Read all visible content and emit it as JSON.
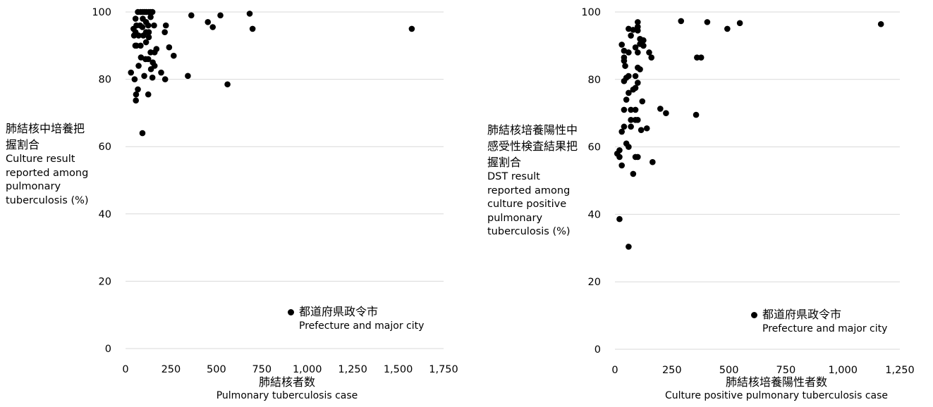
{
  "chart_data": [
    {
      "type": "scatter",
      "ylabel_jp": "肺結核中培養把握割合",
      "ylabel_en": "Culture result reported among pulmonary tuberculosis (%)",
      "xlabel_jp": "肺結核者数",
      "xlabel_en": "Pulmonary tuberculosis case",
      "xlim": [
        0,
        1750
      ],
      "ylim": [
        0,
        100
      ],
      "xticks": [
        0,
        250,
        500,
        750,
        1000,
        1250,
        1500,
        1750
      ],
      "xtick_labels": [
        "0",
        "250",
        "500",
        "750",
        "1,000",
        "1,250",
        "1,500",
        "1,750"
      ],
      "yticks": [
        0,
        20,
        40,
        60,
        80,
        100
      ],
      "ytick_labels": [
        "0",
        "20",
        "40",
        "60",
        "80",
        "100"
      ],
      "grid": "horizontal",
      "legend": {
        "position": "bottom-right",
        "label_jp": "都道府県政令市",
        "label_en": "Prefecture and major city",
        "marker_color": "#000000"
      },
      "series": [
        {
          "color": "#000000",
          "points": [
            [
              68,
              100
            ],
            [
              83,
              100
            ],
            [
              95,
              100
            ],
            [
              105,
              100
            ],
            [
              115,
              100
            ],
            [
              128,
              100
            ],
            [
              138,
              100
            ],
            [
              148,
              100
            ],
            [
              55,
              98
            ],
            [
              95,
              98
            ],
            [
              138,
              98.5
            ],
            [
              113,
              97
            ],
            [
              157,
              96
            ],
            [
              222,
              96
            ],
            [
              60,
              96
            ],
            [
              80,
              96
            ],
            [
              93,
              95.5
            ],
            [
              125,
              96
            ],
            [
              44,
              95
            ],
            [
              55,
              94
            ],
            [
              113,
              94
            ],
            [
              128,
              94
            ],
            [
              216,
              94
            ],
            [
              72,
              93
            ],
            [
              98,
              93
            ],
            [
              47,
              93
            ],
            [
              128,
              92.5
            ],
            [
              113,
              91
            ],
            [
              60,
              90
            ],
            [
              54,
              90
            ],
            [
              83,
              90
            ],
            [
              170,
              89
            ],
            [
              240,
              89.5
            ],
            [
              160,
              88
            ],
            [
              138,
              88
            ],
            [
              265,
              87
            ],
            [
              85,
              86.5
            ],
            [
              110,
              86
            ],
            [
              125,
              86
            ],
            [
              150,
              85
            ],
            [
              72,
              84
            ],
            [
              160,
              84
            ],
            [
              140,
              83
            ],
            [
              103,
              81
            ],
            [
              196,
              82
            ],
            [
              30,
              82
            ],
            [
              148,
              80.5
            ],
            [
              218,
              80
            ],
            [
              50,
              80
            ],
            [
              343,
              81
            ],
            [
              68,
              77
            ],
            [
              58,
              75.5
            ],
            [
              125,
              75.5
            ],
            [
              57,
              73.7
            ],
            [
              93,
              64
            ],
            [
              362,
              99
            ],
            [
              522,
              99
            ],
            [
              683,
              99.5
            ],
            [
              453,
              97
            ],
            [
              480,
              95.5
            ],
            [
              699,
              95
            ],
            [
              561,
              78.5
            ],
            [
              1575,
              95
            ]
          ]
        }
      ]
    },
    {
      "type": "scatter",
      "ylabel_jp": "肺結核培養陽性中感受性検査結果把握割合",
      "ylabel_en": "DST result reported among culture positive pulmonary tuberculosis (%)",
      "xlabel_jp": "肺結核培養陽性者数",
      "xlabel_en": "Culture positive pulmonary tuberculosis case",
      "xlim": [
        0,
        1250
      ],
      "ylim": [
        0,
        100
      ],
      "xticks": [
        0,
        250,
        500,
        750,
        1000,
        1250
      ],
      "xtick_labels": [
        "0",
        "250",
        "500",
        "750",
        "1,000",
        "1,250"
      ],
      "yticks": [
        0,
        20,
        40,
        60,
        80,
        100
      ],
      "ytick_labels": [
        "0",
        "20",
        "40",
        "60",
        "80",
        "100"
      ],
      "grid": "horizontal",
      "legend": {
        "position": "bottom-right",
        "label_jp": "都道府県政令市",
        "label_en": "Prefecture and major city",
        "marker_color": "#000000"
      },
      "series": [
        {
          "color": "#000000",
          "points": [
            [
              100,
              97
            ],
            [
              290,
              97.3
            ],
            [
              405,
              97
            ],
            [
              548,
              96.7
            ],
            [
              1167,
              96.4
            ],
            [
              100,
              95.6
            ],
            [
              60,
              95
            ],
            [
              80,
              94.7
            ],
            [
              100,
              94.5
            ],
            [
              493,
              95
            ],
            [
              70,
              93
            ],
            [
              110,
              92
            ],
            [
              125,
              91.6
            ],
            [
              110,
              90.5
            ],
            [
              30,
              90.3
            ],
            [
              90,
              89.5
            ],
            [
              125,
              90
            ],
            [
              40,
              88.5
            ],
            [
              100,
              88
            ],
            [
              60,
              88
            ],
            [
              150,
              88
            ],
            [
              40,
              86.5
            ],
            [
              160,
              86.5
            ],
            [
              360,
              86.5
            ],
            [
              378,
              86.5
            ],
            [
              40,
              85.5
            ],
            [
              45,
              84
            ],
            [
              100,
              83.5
            ],
            [
              110,
              83
            ],
            [
              60,
              81
            ],
            [
              50,
              80.5
            ],
            [
              90,
              81
            ],
            [
              40,
              79.5
            ],
            [
              100,
              79
            ],
            [
              90,
              77.5
            ],
            [
              60,
              76
            ],
            [
              80,
              77
            ],
            [
              50,
              74
            ],
            [
              120,
              73.5
            ],
            [
              70,
              71
            ],
            [
              40,
              71
            ],
            [
              90,
              71
            ],
            [
              199,
              71.3
            ],
            [
              224,
              70
            ],
            [
              356,
              69.5
            ],
            [
              70,
              68
            ],
            [
              90,
              68
            ],
            [
              100,
              68
            ],
            [
              70,
              66
            ],
            [
              40,
              66
            ],
            [
              140,
              65.5
            ],
            [
              115,
              65
            ],
            [
              30,
              64.5
            ],
            [
              50,
              61
            ],
            [
              60,
              60
            ],
            [
              10,
              58
            ],
            [
              20,
              59
            ],
            [
              20,
              57
            ],
            [
              100,
              57
            ],
            [
              90,
              57
            ],
            [
              165,
              55.5
            ],
            [
              30,
              54.5
            ],
            [
              80,
              52
            ],
            [
              20,
              38.6
            ],
            [
              60,
              30.4
            ]
          ]
        }
      ]
    }
  ]
}
